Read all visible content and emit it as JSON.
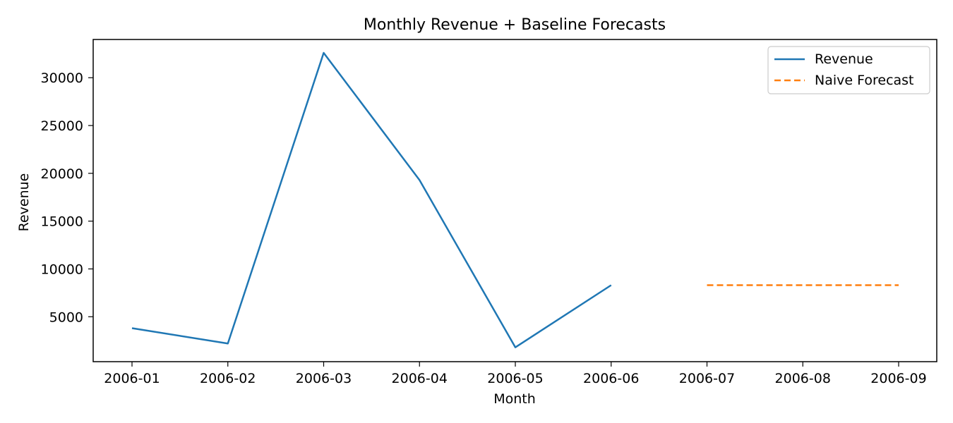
{
  "chart_data": {
    "type": "line",
    "title": "Monthly Revenue + Baseline Forecasts",
    "xlabel": "Month",
    "ylabel": "Revenue",
    "x": [
      "2006-01",
      "2006-02",
      "2006-03",
      "2006-04",
      "2006-05",
      "2006-06",
      "2006-07",
      "2006-08",
      "2006-09"
    ],
    "x_ticks": [
      "2006-01",
      "2006-02",
      "2006-03",
      "2006-04",
      "2006-05",
      "2006-06",
      "2006-07",
      "2006-08",
      "2006-09"
    ],
    "y_ticks": [
      5000,
      10000,
      15000,
      20000,
      25000,
      30000
    ],
    "ylim": [
      300,
      34000
    ],
    "grid": false,
    "legend_position": "top-right",
    "series": [
      {
        "name": "Revenue",
        "style": "solid",
        "color": "#1f77b4",
        "x": [
          "2006-01",
          "2006-02",
          "2006-03",
          "2006-04",
          "2006-05",
          "2006-06"
        ],
        "values": [
          3800,
          2200,
          32600,
          19300,
          1800,
          8300
        ]
      },
      {
        "name": "Naive Forecast",
        "style": "dashed",
        "color": "#ff7f0e",
        "x": [
          "2006-07",
          "2006-08",
          "2006-09"
        ],
        "values": [
          8300,
          8300,
          8300
        ]
      }
    ]
  }
}
